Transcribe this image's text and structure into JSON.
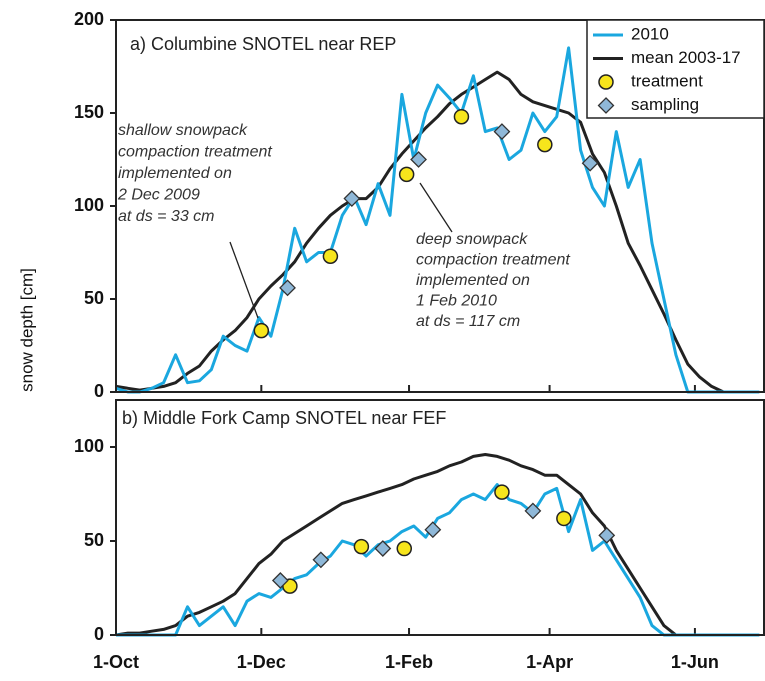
{
  "chart_data": [
    {
      "type": "line",
      "title": "a) Columbine SNOTEL near REP",
      "ylabel": "snow depth [cm]",
      "xlim": [
        0,
        272
      ],
      "ylim": [
        0,
        200
      ],
      "yticks": [
        0,
        50,
        100,
        150,
        200
      ],
      "x": [
        0,
        5,
        10,
        15,
        20,
        25,
        30,
        35,
        40,
        45,
        50,
        55,
        60,
        65,
        70,
        75,
        80,
        85,
        90,
        95,
        100,
        105,
        110,
        115,
        120,
        125,
        130,
        135,
        140,
        145,
        150,
        155,
        160,
        165,
        170,
        175,
        180,
        185,
        190,
        195,
        200,
        205,
        210,
        215,
        220,
        225,
        230,
        235,
        240,
        245,
        250,
        255,
        260,
        265,
        270
      ],
      "series": [
        {
          "name": "2010",
          "color": "#1aa7df",
          "values": [
            2,
            0,
            0,
            2,
            5,
            20,
            5,
            6,
            12,
            30,
            25,
            22,
            40,
            30,
            55,
            88,
            70,
            75,
            75,
            95,
            105,
            90,
            112,
            95,
            160,
            125,
            150,
            165,
            158,
            150,
            170,
            140,
            142,
            125,
            130,
            150,
            140,
            148,
            185,
            130,
            110,
            100,
            140,
            110,
            125,
            80,
            50,
            20,
            0,
            0,
            0,
            0,
            0,
            0,
            0
          ]
        },
        {
          "name": "mean 2003-17",
          "color": "#222222",
          "values": [
            3,
            2,
            1,
            2,
            3,
            5,
            10,
            14,
            22,
            28,
            33,
            40,
            50,
            57,
            63,
            70,
            80,
            88,
            95,
            100,
            104,
            104,
            110,
            120,
            128,
            135,
            142,
            148,
            155,
            160,
            164,
            168,
            172,
            168,
            160,
            156,
            154,
            152,
            150,
            145,
            128,
            118,
            100,
            80,
            68,
            55,
            42,
            28,
            15,
            8,
            3,
            0,
            0,
            0,
            0
          ]
        },
        {
          "name": "treatment",
          "color": "#f7e51c",
          "marker": "circle",
          "x": [
            61,
            90,
            122,
            145,
            180
          ],
          "values": [
            33,
            73,
            117,
            148,
            133
          ]
        },
        {
          "name": "sampling",
          "color": "#8fb8d8",
          "marker": "diamond",
          "x": [
            72,
            99,
            127,
            162,
            199
          ],
          "values": [
            56,
            104,
            125,
            140,
            123
          ]
        }
      ],
      "annotations": [
        {
          "lines": [
            "shallow snowpack",
            "compaction treatment",
            "implemented on",
            "2 Dec 2009",
            "at ds = 33 cm"
          ]
        },
        {
          "lines": [
            "deep snowpack",
            "compaction treatment",
            "implemented on",
            "1 Feb 2010",
            "at ds = 117 cm"
          ]
        }
      ]
    },
    {
      "type": "line",
      "title": "b) Middle Fork Camp SNOTEL near FEF",
      "xlim": [
        0,
        272
      ],
      "ylim": [
        0,
        125
      ],
      "yticks": [
        0,
        50,
        100
      ],
      "xticks": [
        {
          "value": 0,
          "label": "1-Oct"
        },
        {
          "value": 61,
          "label": "1-Dec"
        },
        {
          "value": 123,
          "label": "1-Feb"
        },
        {
          "value": 182,
          "label": "1-Apr"
        },
        {
          "value": 243,
          "label": "1-Jun"
        }
      ],
      "x": [
        0,
        5,
        10,
        15,
        20,
        25,
        30,
        35,
        40,
        45,
        50,
        55,
        60,
        65,
        70,
        75,
        80,
        85,
        90,
        95,
        100,
        105,
        110,
        115,
        120,
        125,
        130,
        135,
        140,
        145,
        150,
        155,
        160,
        165,
        170,
        175,
        180,
        185,
        190,
        195,
        200,
        205,
        210,
        215,
        220,
        225,
        230,
        235,
        240,
        245,
        250,
        255,
        260,
        265,
        270
      ],
      "series": [
        {
          "color": "#1aa7df",
          "values": [
            0,
            0,
            0,
            0,
            0,
            0,
            15,
            5,
            10,
            15,
            5,
            18,
            22,
            20,
            25,
            30,
            32,
            38,
            42,
            50,
            48,
            42,
            48,
            50,
            55,
            58,
            52,
            62,
            65,
            72,
            75,
            72,
            80,
            72,
            70,
            65,
            75,
            78,
            55,
            72,
            45,
            50,
            40,
            30,
            20,
            5,
            0,
            0,
            0,
            0,
            0,
            0,
            0,
            0,
            0
          ]
        },
        {
          "color": "#222222",
          "values": [
            0,
            1,
            1,
            2,
            3,
            5,
            10,
            12,
            15,
            18,
            22,
            30,
            38,
            43,
            50,
            54,
            58,
            62,
            66,
            70,
            72,
            74,
            76,
            78,
            80,
            83,
            85,
            87,
            90,
            92,
            95,
            96,
            95,
            93,
            90,
            88,
            85,
            85,
            80,
            75,
            65,
            58,
            45,
            35,
            25,
            15,
            5,
            0,
            0,
            0,
            0,
            0,
            0,
            0,
            0
          ]
        },
        {
          "color": "#f7e51c",
          "marker": "circle",
          "x": [
            73,
            103,
            121,
            162,
            188
          ],
          "values": [
            26,
            47,
            46,
            76,
            62
          ]
        },
        {
          "color": "#8fb8d8",
          "marker": "diamond",
          "x": [
            69,
            86,
            112,
            133,
            175,
            206
          ],
          "values": [
            29,
            40,
            46,
            56,
            66,
            53
          ]
        }
      ]
    }
  ]
}
